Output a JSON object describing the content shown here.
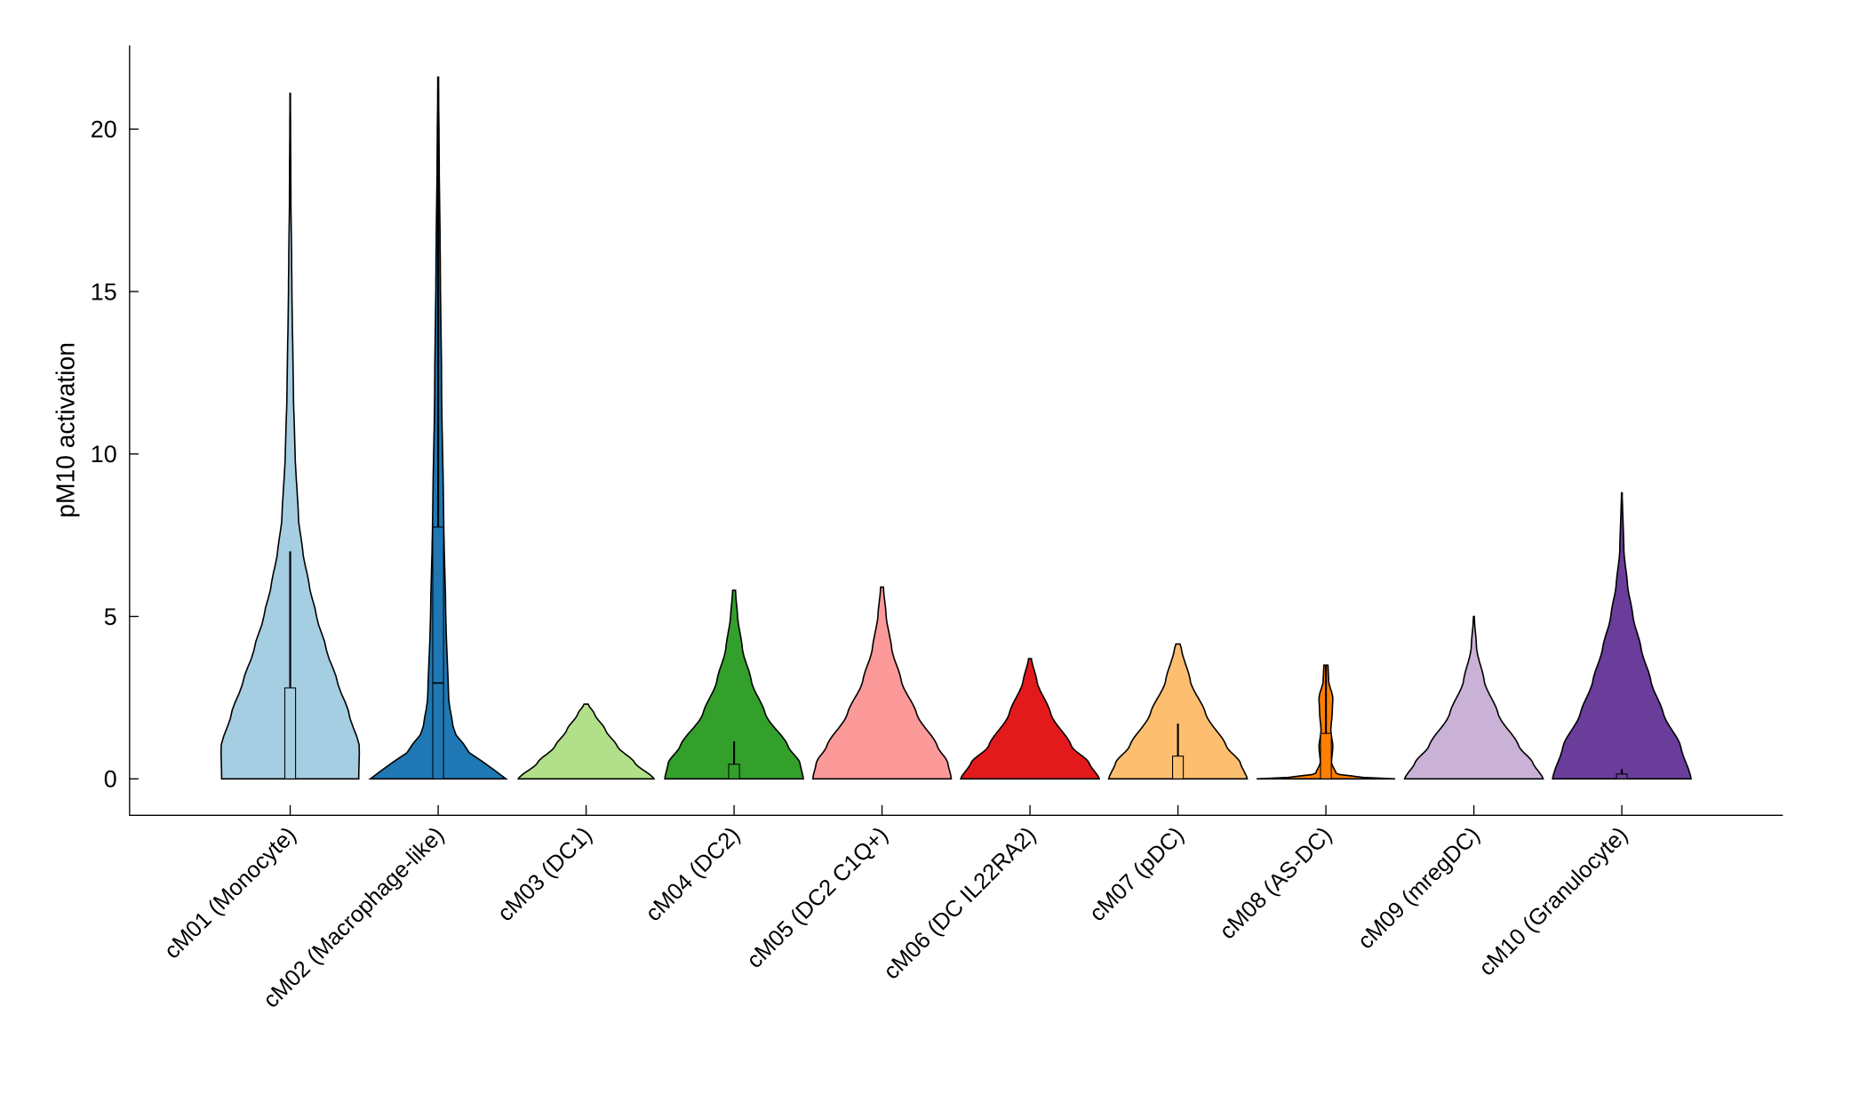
{
  "chart_data": {
    "type": "violin",
    "ylabel": "pM10 activation",
    "ylim": [
      -1.1,
      22.5
    ],
    "yticks": [
      0,
      5,
      10,
      15,
      20
    ],
    "grid": false,
    "categories": [
      "cM01 (Monocyte)",
      "cM02 (Macrophage-like)",
      "cM03 (DC1)",
      "cM04 (DC2)",
      "cM05 (DC2 C1Q+)",
      "cM06 (DC IL22RA2)",
      "cM07 (pDC)",
      "cM08 (AS-DC)",
      "cM09 (mregDC)",
      "cM10 (Granulocyte)"
    ],
    "colors": [
      "#a6cee3",
      "#1f78b4",
      "#b2df8a",
      "#33a02c",
      "#fb9a99",
      "#e31a1c",
      "#fdbf6f",
      "#ff7f00",
      "#cab2d6",
      "#6a3d9a"
    ],
    "violins": [
      {
        "max": 21.1,
        "q1": 0,
        "q3": 2.8,
        "median": null,
        "whisker": 7.0,
        "density": [
          [
            0,
            0.99
          ],
          [
            1,
            1
          ],
          [
            2,
            0.85
          ],
          [
            3,
            0.68
          ],
          [
            4,
            0.52
          ],
          [
            5,
            0.38
          ],
          [
            6,
            0.27
          ],
          [
            7,
            0.18
          ],
          [
            8,
            0.12
          ],
          [
            10,
            0.07
          ],
          [
            12,
            0.045
          ],
          [
            15,
            0.025
          ],
          [
            18,
            0.01
          ],
          [
            21.1,
            0.003
          ]
        ]
      },
      {
        "max": 21.6,
        "q1": 0,
        "q3": 7.75,
        "median": 2.95,
        "whisker": 21.6,
        "density": [
          [
            0,
            0.98
          ],
          [
            0.3,
            0.8
          ],
          [
            0.8,
            0.45
          ],
          [
            1.5,
            0.22
          ],
          [
            2.5,
            0.15
          ],
          [
            5,
            0.11
          ],
          [
            8,
            0.08
          ],
          [
            12,
            0.05
          ],
          [
            16,
            0.03
          ],
          [
            19,
            0.015
          ],
          [
            21.6,
            0.005
          ]
        ]
      },
      {
        "max": 2.3,
        "q1": null,
        "q3": null,
        "median": null,
        "whisker": null,
        "density": [
          [
            0,
            0.98
          ],
          [
            0.5,
            0.7
          ],
          [
            1,
            0.45
          ],
          [
            1.5,
            0.28
          ],
          [
            2,
            0.12
          ],
          [
            2.3,
            0.03
          ]
        ]
      },
      {
        "max": 5.8,
        "q1": 0,
        "q3": 0.45,
        "median": null,
        "whisker": 1.15,
        "density": [
          [
            0,
            1
          ],
          [
            0.5,
            0.95
          ],
          [
            1,
            0.78
          ],
          [
            2,
            0.45
          ],
          [
            3,
            0.25
          ],
          [
            4,
            0.12
          ],
          [
            5,
            0.05
          ],
          [
            5.8,
            0.02
          ]
        ]
      },
      {
        "max": 5.9,
        "q1": null,
        "q3": null,
        "median": null,
        "whisker": null,
        "density": [
          [
            0,
            1
          ],
          [
            0.5,
            0.95
          ],
          [
            1,
            0.8
          ],
          [
            2,
            0.5
          ],
          [
            3,
            0.28
          ],
          [
            4,
            0.14
          ],
          [
            5,
            0.06
          ],
          [
            5.9,
            0.02
          ]
        ]
      },
      {
        "max": 3.7,
        "q1": null,
        "q3": null,
        "median": null,
        "whisker": null,
        "density": [
          [
            0,
            1
          ],
          [
            0.5,
            0.85
          ],
          [
            1,
            0.6
          ],
          [
            2,
            0.3
          ],
          [
            3,
            0.1
          ],
          [
            3.7,
            0.02
          ]
        ]
      },
      {
        "max": 4.15,
        "q1": 0,
        "q3": 0.7,
        "median": null,
        "whisker": 1.7,
        "density": [
          [
            0,
            1
          ],
          [
            0.5,
            0.9
          ],
          [
            1,
            0.7
          ],
          [
            2,
            0.4
          ],
          [
            3,
            0.18
          ],
          [
            4,
            0.05
          ],
          [
            4.15,
            0.03
          ]
        ]
      },
      {
        "max": 3.5,
        "q1": 0,
        "q3": 1.4,
        "median": null,
        "whisker": 3.5,
        "density": [
          [
            0,
            1
          ],
          [
            0.05,
            0.5
          ],
          [
            0.15,
            0.15
          ],
          [
            0.5,
            0.08
          ],
          [
            1,
            0.1
          ],
          [
            1.5,
            0.07
          ],
          [
            2,
            0.09
          ],
          [
            2.5,
            0.1
          ],
          [
            3,
            0.04
          ],
          [
            3.5,
            0.03
          ]
        ]
      },
      {
        "max": 5.0,
        "q1": null,
        "q3": null,
        "median": null,
        "whisker": null,
        "density": [
          [
            0,
            1
          ],
          [
            0.5,
            0.85
          ],
          [
            1,
            0.65
          ],
          [
            2,
            0.35
          ],
          [
            3,
            0.15
          ],
          [
            4,
            0.04
          ],
          [
            5,
            0.005
          ]
        ]
      },
      {
        "max": 8.8,
        "q1": 0,
        "q3": 0.15,
        "median": null,
        "whisker": 0.3,
        "density": [
          [
            0,
            1
          ],
          [
            1,
            0.85
          ],
          [
            2,
            0.6
          ],
          [
            3,
            0.42
          ],
          [
            4,
            0.28
          ],
          [
            5,
            0.16
          ],
          [
            6,
            0.08
          ],
          [
            7,
            0.03
          ],
          [
            8.8,
            0.005
          ]
        ]
      }
    ]
  }
}
